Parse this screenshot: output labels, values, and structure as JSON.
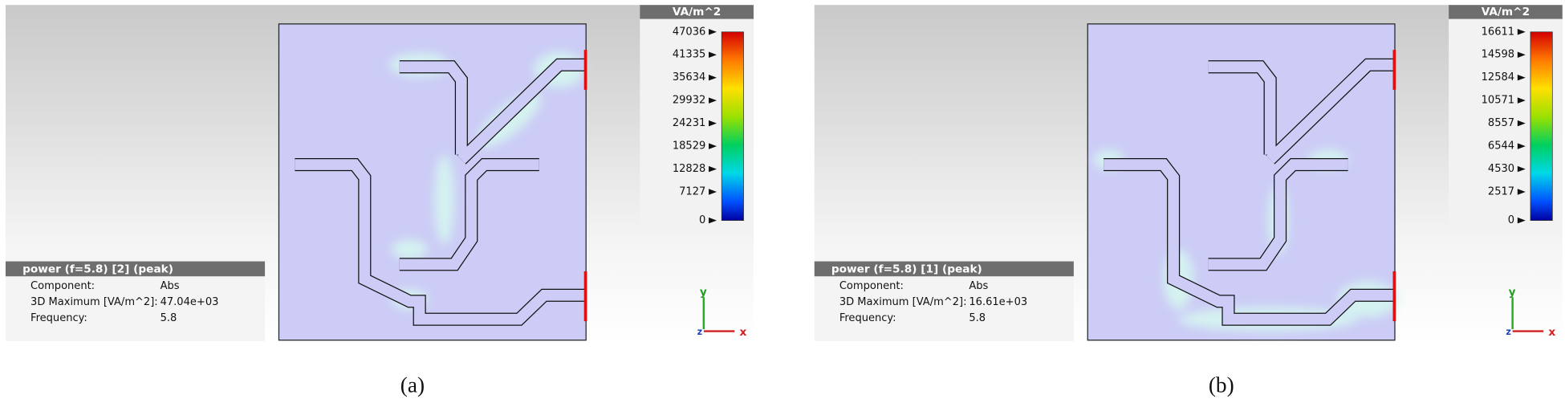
{
  "panels": [
    {
      "colorbar": {
        "title": "VA/m^2",
        "ticks": [
          47036,
          41335,
          35634,
          29932,
          24231,
          18529,
          12828,
          7127,
          0
        ]
      },
      "info": {
        "title": "power (f=5.8) [2] (peak)",
        "rows": [
          [
            "Component:",
            "Abs"
          ],
          [
            "3D Maximum [VA/m^2]:",
            "47.04e+03"
          ],
          [
            "Frequency:",
            "5.8"
          ]
        ]
      },
      "axes": {
        "y": "y",
        "z": "z",
        "x": "x"
      },
      "caption": "(a)"
    },
    {
      "colorbar": {
        "title": "VA/m^2",
        "ticks": [
          16611,
          14598,
          12584,
          10571,
          8557,
          6544,
          4530,
          2517,
          0
        ]
      },
      "info": {
        "title": "power (f=5.8) [1] (peak)",
        "rows": [
          [
            "Component:",
            "Abs"
          ],
          [
            "3D Maximum [VA/m^2]:",
            "16.61e+03"
          ],
          [
            "Frequency:",
            "5.8"
          ]
        ]
      },
      "axes": {
        "y": "y",
        "z": "z",
        "x": "x"
      },
      "caption": "(b)"
    }
  ]
}
